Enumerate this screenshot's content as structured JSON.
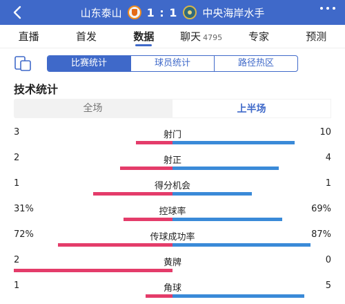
{
  "header": {
    "home_team": "山东泰山",
    "score": "1 : 1",
    "away_team": "中央海岸水手",
    "colors": {
      "background": "#3f69c9"
    }
  },
  "nav": {
    "items": [
      {
        "label": "直播"
      },
      {
        "label": "首发"
      },
      {
        "label": "数据",
        "active": true
      },
      {
        "label": "聊天",
        "count": "4795"
      },
      {
        "label": "专家"
      },
      {
        "label": "预测"
      }
    ]
  },
  "subtabs": [
    "比赛统计",
    "球员统计",
    "路径热区"
  ],
  "section_title": "技术统计",
  "period": {
    "options": [
      "全场",
      "上半场"
    ],
    "selected": "上半场"
  },
  "stats": [
    {
      "name": "射门",
      "home": "3",
      "away": "10",
      "home_share": 0.23,
      "away_share": 0.77
    },
    {
      "name": "射正",
      "home": "2",
      "away": "4",
      "home_share": 0.33,
      "away_share": 0.67
    },
    {
      "name": "得分机会",
      "home": "1",
      "away": "1",
      "home_share": 0.5,
      "away_share": 0.5
    },
    {
      "name": "控球率",
      "home": "31%",
      "away": "69%",
      "home_share": 0.31,
      "away_share": 0.69
    },
    {
      "name": "传球成功率",
      "home": "72%",
      "away": "87%",
      "home_share": 0.72,
      "away_share": 0.87
    },
    {
      "name": "黄牌",
      "home": "2",
      "away": "0",
      "home_share": 1.0,
      "away_share": 0.0
    },
    {
      "name": "角球",
      "home": "1",
      "away": "5",
      "home_share": 0.17,
      "away_share": 0.83
    }
  ],
  "colors": {
    "home_bar": "#e43c6a",
    "away_bar": "#3a8ad8"
  }
}
